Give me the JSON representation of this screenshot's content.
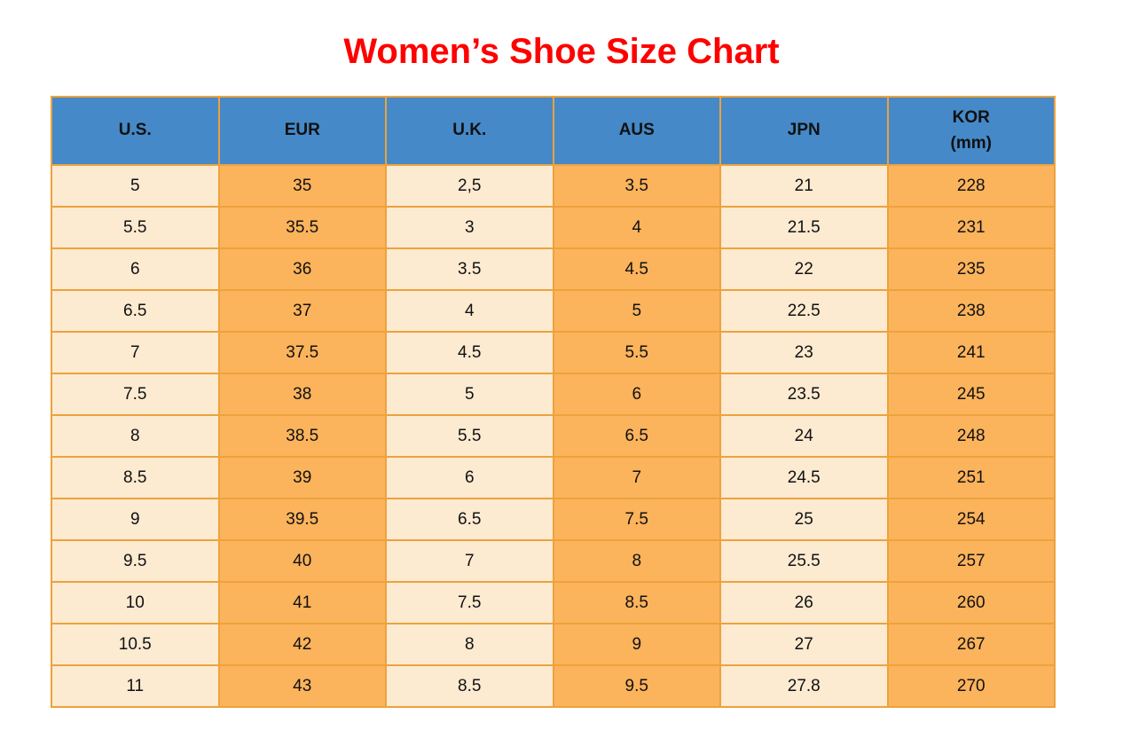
{
  "title": "Women’s Shoe Size Chart",
  "colors": {
    "title_red": "#ff0000",
    "header_blue": "#4589c8",
    "cell_cream": "#fcead1",
    "cell_orange": "#fbb35c",
    "border_orange": "#eda23c",
    "text_black": "#111111"
  },
  "chart_data": {
    "type": "table",
    "title": "Women’s Shoe Size Chart",
    "legend_position": "none",
    "grid": true,
    "columns": [
      {
        "id": "us",
        "label": "U.S.",
        "sublabel": ""
      },
      {
        "id": "eur",
        "label": "EUR",
        "sublabel": ""
      },
      {
        "id": "uk",
        "label": "U.K.",
        "sublabel": ""
      },
      {
        "id": "aus",
        "label": "AUS",
        "sublabel": ""
      },
      {
        "id": "jpn",
        "label": "JPN",
        "sublabel": ""
      },
      {
        "id": "kor",
        "label": "KOR",
        "sublabel": "(mm)"
      }
    ],
    "rows": [
      [
        "5",
        "35",
        "2,5",
        "3.5",
        "21",
        "228"
      ],
      [
        "5.5",
        "35.5",
        "3",
        "4",
        "21.5",
        "231"
      ],
      [
        "6",
        "36",
        "3.5",
        "4.5",
        "22",
        "235"
      ],
      [
        "6.5",
        "37",
        "4",
        "5",
        "22.5",
        "238"
      ],
      [
        "7",
        "37.5",
        "4.5",
        "5.5",
        "23",
        "241"
      ],
      [
        "7.5",
        "38",
        "5",
        "6",
        "23.5",
        "245"
      ],
      [
        "8",
        "38.5",
        "5.5",
        "6.5",
        "24",
        "248"
      ],
      [
        "8.5",
        "39",
        "6",
        "7",
        "24.5",
        "251"
      ],
      [
        "9",
        "39.5",
        "6.5",
        "7.5",
        "25",
        "254"
      ],
      [
        "9.5",
        "40",
        "7",
        "8",
        "25.5",
        "257"
      ],
      [
        "10",
        "41",
        "7.5",
        "8.5",
        "26",
        "260"
      ],
      [
        "10.5",
        "42",
        "8",
        "9",
        "27",
        "267"
      ],
      [
        "11",
        "43",
        "8.5",
        "9.5",
        "27.8",
        "270"
      ]
    ]
  }
}
